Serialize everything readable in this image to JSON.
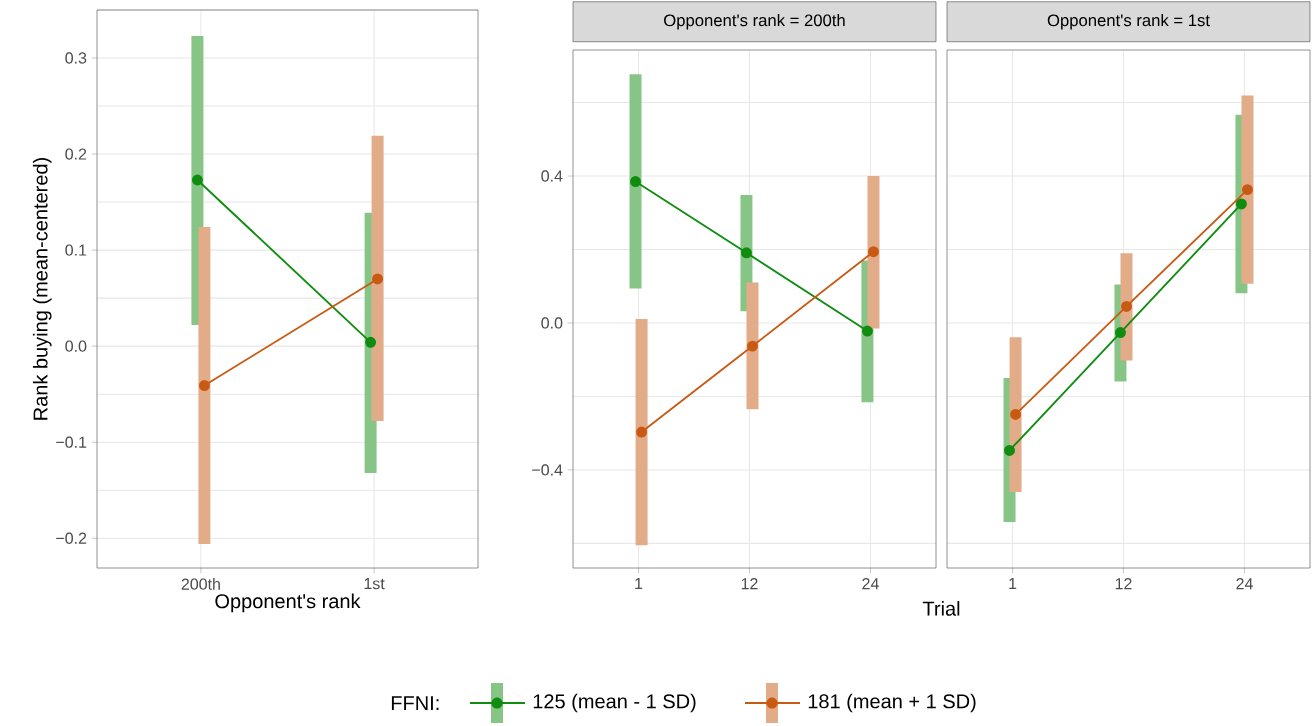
{
  "chart_data": [
    {
      "type": "line",
      "categories": [
        "200th",
        "1st"
      ],
      "xlabel": "Opponent's rank",
      "ylabel": "Rank buying (mean-centered)",
      "legend_title": "FFNI:",
      "legend": "bottom",
      "grid": true,
      "marker": "circle",
      "ylim": [
        -0.231,
        0.35
      ],
      "yticks": [
        {
          "value": -0.2,
          "label": "−0.2"
        },
        {
          "value": -0.1,
          "label": "−0.1"
        },
        {
          "value": 0.0,
          "label": "0.0"
        },
        0.1,
        0.2,
        0.3
      ],
      "series": [
        {
          "name": "125 (mean - 1 SD)",
          "color": "#108c10",
          "values": [
            0.173,
            0.004
          ],
          "errors": [
            [
              0.022,
              0.323
            ],
            [
              -0.132,
              0.139
            ]
          ]
        },
        {
          "name": "181 (mean + 1 SD)",
          "color": "#c85a14",
          "values": [
            -0.041,
            0.07
          ],
          "errors": [
            [
              -0.206,
              0.124
            ],
            [
              -0.078,
              0.219
            ]
          ]
        }
      ]
    },
    {
      "type": "line",
      "title": "Opponent's rank = 200th",
      "xlabel": "Trial",
      "xlim": [
        -5.5,
        30.5
      ],
      "xticks": [
        1,
        12,
        24
      ],
      "grid": true,
      "marker": "circle",
      "ylim": [
        -0.667,
        0.743
      ],
      "yticks": [
        {
          "value": -0.4,
          "label": "−0.4"
        },
        {
          "value": 0.0,
          "label": "0.0"
        },
        0.4
      ],
      "series": [
        {
          "color": "#108c10",
          "x": [
            0.7,
            11.7,
            23.7
          ],
          "values": [
            0.385,
            0.191,
            -0.022
          ],
          "errors": [
            [
              0.094,
              0.677
            ],
            [
              0.032,
              0.348
            ],
            [
              -0.216,
              0.17
            ]
          ]
        },
        {
          "color": "#c85a14",
          "x": [
            1.3,
            12.3,
            24.3
          ],
          "values": [
            -0.297,
            -0.063,
            0.194
          ],
          "errors": [
            [
              -0.605,
              0.011
            ],
            [
              -0.235,
              0.11
            ],
            [
              -0.015,
              0.4
            ]
          ]
        }
      ]
    },
    {
      "type": "line",
      "title": "Opponent's rank = 1st",
      "xlim": [
        -5.5,
        30.5
      ],
      "xticks": [
        1,
        12,
        24
      ],
      "grid": true,
      "marker": "circle",
      "tick_labels": "x",
      "ylim": [
        -0.667,
        0.743
      ],
      "yticks": [
        {
          "value": -0.4,
          "label": null
        },
        {
          "value": 0.0,
          "label": null
        },
        {
          "value": 0.4,
          "label": null
        }
      ],
      "series": [
        {
          "color": "#108c10",
          "x": [
            0.7,
            11.7,
            23.7
          ],
          "values": [
            -0.347,
            -0.026,
            0.324
          ],
          "errors": [
            [
              -0.542,
              -0.15
            ],
            [
              -0.159,
              0.105
            ],
            [
              0.081,
              0.567
            ]
          ]
        },
        {
          "color": "#c85a14",
          "x": [
            1.3,
            12.3,
            24.3
          ],
          "values": [
            -0.249,
            0.045,
            0.363
          ],
          "errors": [
            [
              -0.46,
              -0.039
            ],
            [
              -0.102,
              0.19
            ],
            [
              0.107,
              0.619
            ]
          ]
        }
      ]
    }
  ]
}
